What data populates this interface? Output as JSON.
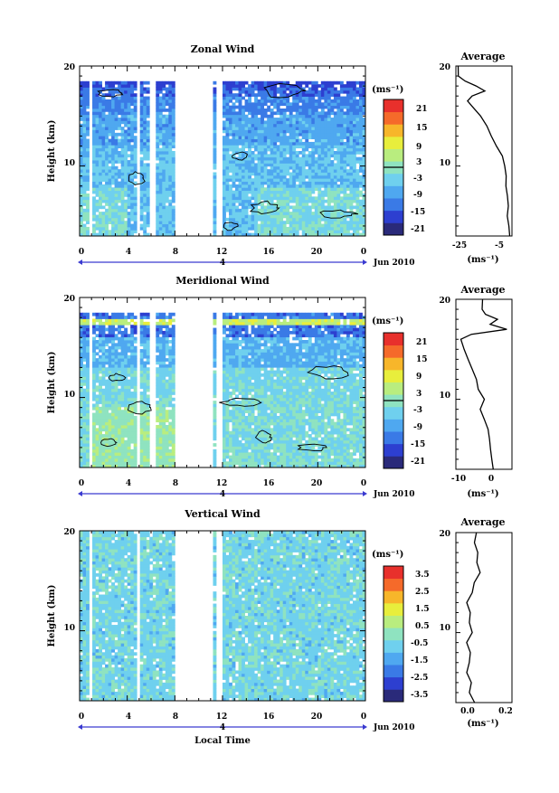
{
  "chart_data": [
    {
      "type": "heatmap",
      "title": "Zonal Wind",
      "xlabel": "",
      "ylabel": "Height (km)",
      "xlim": [
        0,
        24
      ],
      "ylim": [
        3,
        20
      ],
      "x_ticks": [
        "0",
        "4",
        "8",
        "12",
        "16",
        "20",
        "0"
      ],
      "y_ticks": [
        "10",
        "20"
      ],
      "date_marker": "4",
      "date_label": "Jun 2010",
      "colorbar": {
        "unit": "(ms⁻¹)",
        "ticks": [
          "21",
          "15",
          "9",
          "3",
          "-3",
          "-9",
          "-15",
          "-21"
        ],
        "range": [
          -24,
          24
        ],
        "zero_line": 0
      },
      "gaps_hours": [
        [
          0.7,
          1.2
        ],
        [
          4.7,
          5.0
        ],
        [
          5.9,
          6.3
        ],
        [
          7.9,
          11.1
        ],
        [
          11.6,
          11.9
        ],
        [
          14.4,
          14.5
        ]
      ],
      "average_profile": {
        "title": "Average",
        "xlabel": "(ms⁻¹)",
        "x_ticks": [
          "-25",
          "-5"
        ],
        "xlim": [
          -27,
          -2
        ],
        "y_ticks": [
          "10",
          "20"
        ],
        "height_km": [
          3,
          4,
          5,
          6,
          7,
          8,
          9,
          10,
          11,
          12,
          13,
          14,
          15,
          16,
          16.5,
          17,
          17.5,
          18,
          18.5,
          19,
          20
        ],
        "values": [
          -3,
          -3.5,
          -4,
          -3.5,
          -4,
          -4.5,
          -4.5,
          -5,
          -6.5,
          -9,
          -11,
          -13,
          -16,
          -20,
          -22,
          -20,
          -14,
          -18,
          -23,
          -26,
          -26
        ]
      }
    },
    {
      "type": "heatmap",
      "title": "Meridional Wind",
      "xlabel": "",
      "ylabel": "Height (km)",
      "xlim": [
        0,
        24
      ],
      "ylim": [
        3,
        20
      ],
      "x_ticks": [
        "0",
        "4",
        "8",
        "12",
        "16",
        "20",
        "0"
      ],
      "y_ticks": [
        "10",
        "20"
      ],
      "date_marker": "4",
      "date_label": "Jun 2010",
      "colorbar": {
        "unit": "(ms⁻¹)",
        "ticks": [
          "21",
          "15",
          "9",
          "3",
          "-3",
          "-9",
          "-15",
          "-21"
        ],
        "range": [
          -24,
          24
        ],
        "zero_line": 0
      },
      "gaps_hours": [
        [
          0.7,
          1.2
        ],
        [
          4.7,
          5.0
        ],
        [
          5.9,
          6.3
        ],
        [
          7.9,
          11.1
        ],
        [
          11.6,
          11.9
        ],
        [
          14.4,
          14.5
        ]
      ],
      "average_profile": {
        "title": "Average",
        "xlabel": "(ms⁻¹)",
        "x_ticks": [
          "-10",
          "0"
        ],
        "xlim": [
          -14,
          7
        ],
        "y_ticks": [
          "10",
          "20"
        ],
        "height_km": [
          3,
          4,
          5,
          6,
          7,
          8,
          9,
          10,
          11,
          12,
          13,
          14,
          15,
          16,
          16.5,
          17,
          17.5,
          18,
          18.5,
          19,
          20
        ],
        "values": [
          0,
          -0.5,
          -1,
          -1.5,
          -2,
          -3.5,
          -5,
          -3.5,
          -5.5,
          -6.5,
          -8,
          -9.5,
          -11,
          -12,
          -8,
          5,
          -1,
          1.5,
          -3,
          -4,
          -4
        ]
      }
    },
    {
      "type": "heatmap",
      "title": "Vertical Wind",
      "xlabel": "Local Time",
      "ylabel": "Height (km)",
      "xlim": [
        0,
        24
      ],
      "ylim": [
        3,
        20
      ],
      "x_ticks": [
        "0",
        "4",
        "8",
        "12",
        "16",
        "20",
        "0"
      ],
      "y_ticks": [
        "10",
        "20"
      ],
      "date_marker": "4",
      "date_label": "Jun 2010",
      "colorbar": {
        "unit": "(ms⁻¹)",
        "ticks": [
          "3.5",
          "2.5",
          "1.5",
          "0.5",
          "-0.5",
          "-1.5",
          "-2.5",
          "-3.5"
        ],
        "range": [
          -4,
          4
        ],
        "zero_line": null
      },
      "gaps_hours": [
        [
          0.7,
          1.2
        ],
        [
          4.7,
          5.0
        ],
        [
          7.9,
          11.1
        ],
        [
          11.6,
          11.9
        ],
        [
          14.4,
          14.5
        ]
      ],
      "average_profile": {
        "title": "Average",
        "xlabel": "(ms⁻¹)",
        "x_ticks": [
          "0.0",
          "0.2"
        ],
        "xlim": [
          -0.08,
          0.22
        ],
        "y_ticks": [
          "10",
          "20"
        ],
        "height_km": [
          3,
          4,
          5,
          6,
          7,
          8,
          9,
          10,
          11,
          12,
          13,
          14,
          15,
          16,
          17,
          18,
          19,
          20
        ],
        "values": [
          0.02,
          -0.01,
          0.0,
          -0.02,
          -0.01,
          0.0,
          -0.02,
          0.01,
          -0.01,
          0.0,
          -0.02,
          0.01,
          0.02,
          0.05,
          0.03,
          0.04,
          0.02,
          0.03
        ]
      }
    }
  ],
  "colors": {
    "scale": [
      "#2a2a7a",
      "#2d3fd0",
      "#3a7ae6",
      "#4fa8f0",
      "#6fd0ee",
      "#8fe3c0",
      "#b9ed7f",
      "#e8ee3c",
      "#f7b62a",
      "#f56a2a",
      "#e8302c"
    ],
    "gap": "#ffffff",
    "axis": "#000000",
    "timeline": "#3a3ad0"
  }
}
